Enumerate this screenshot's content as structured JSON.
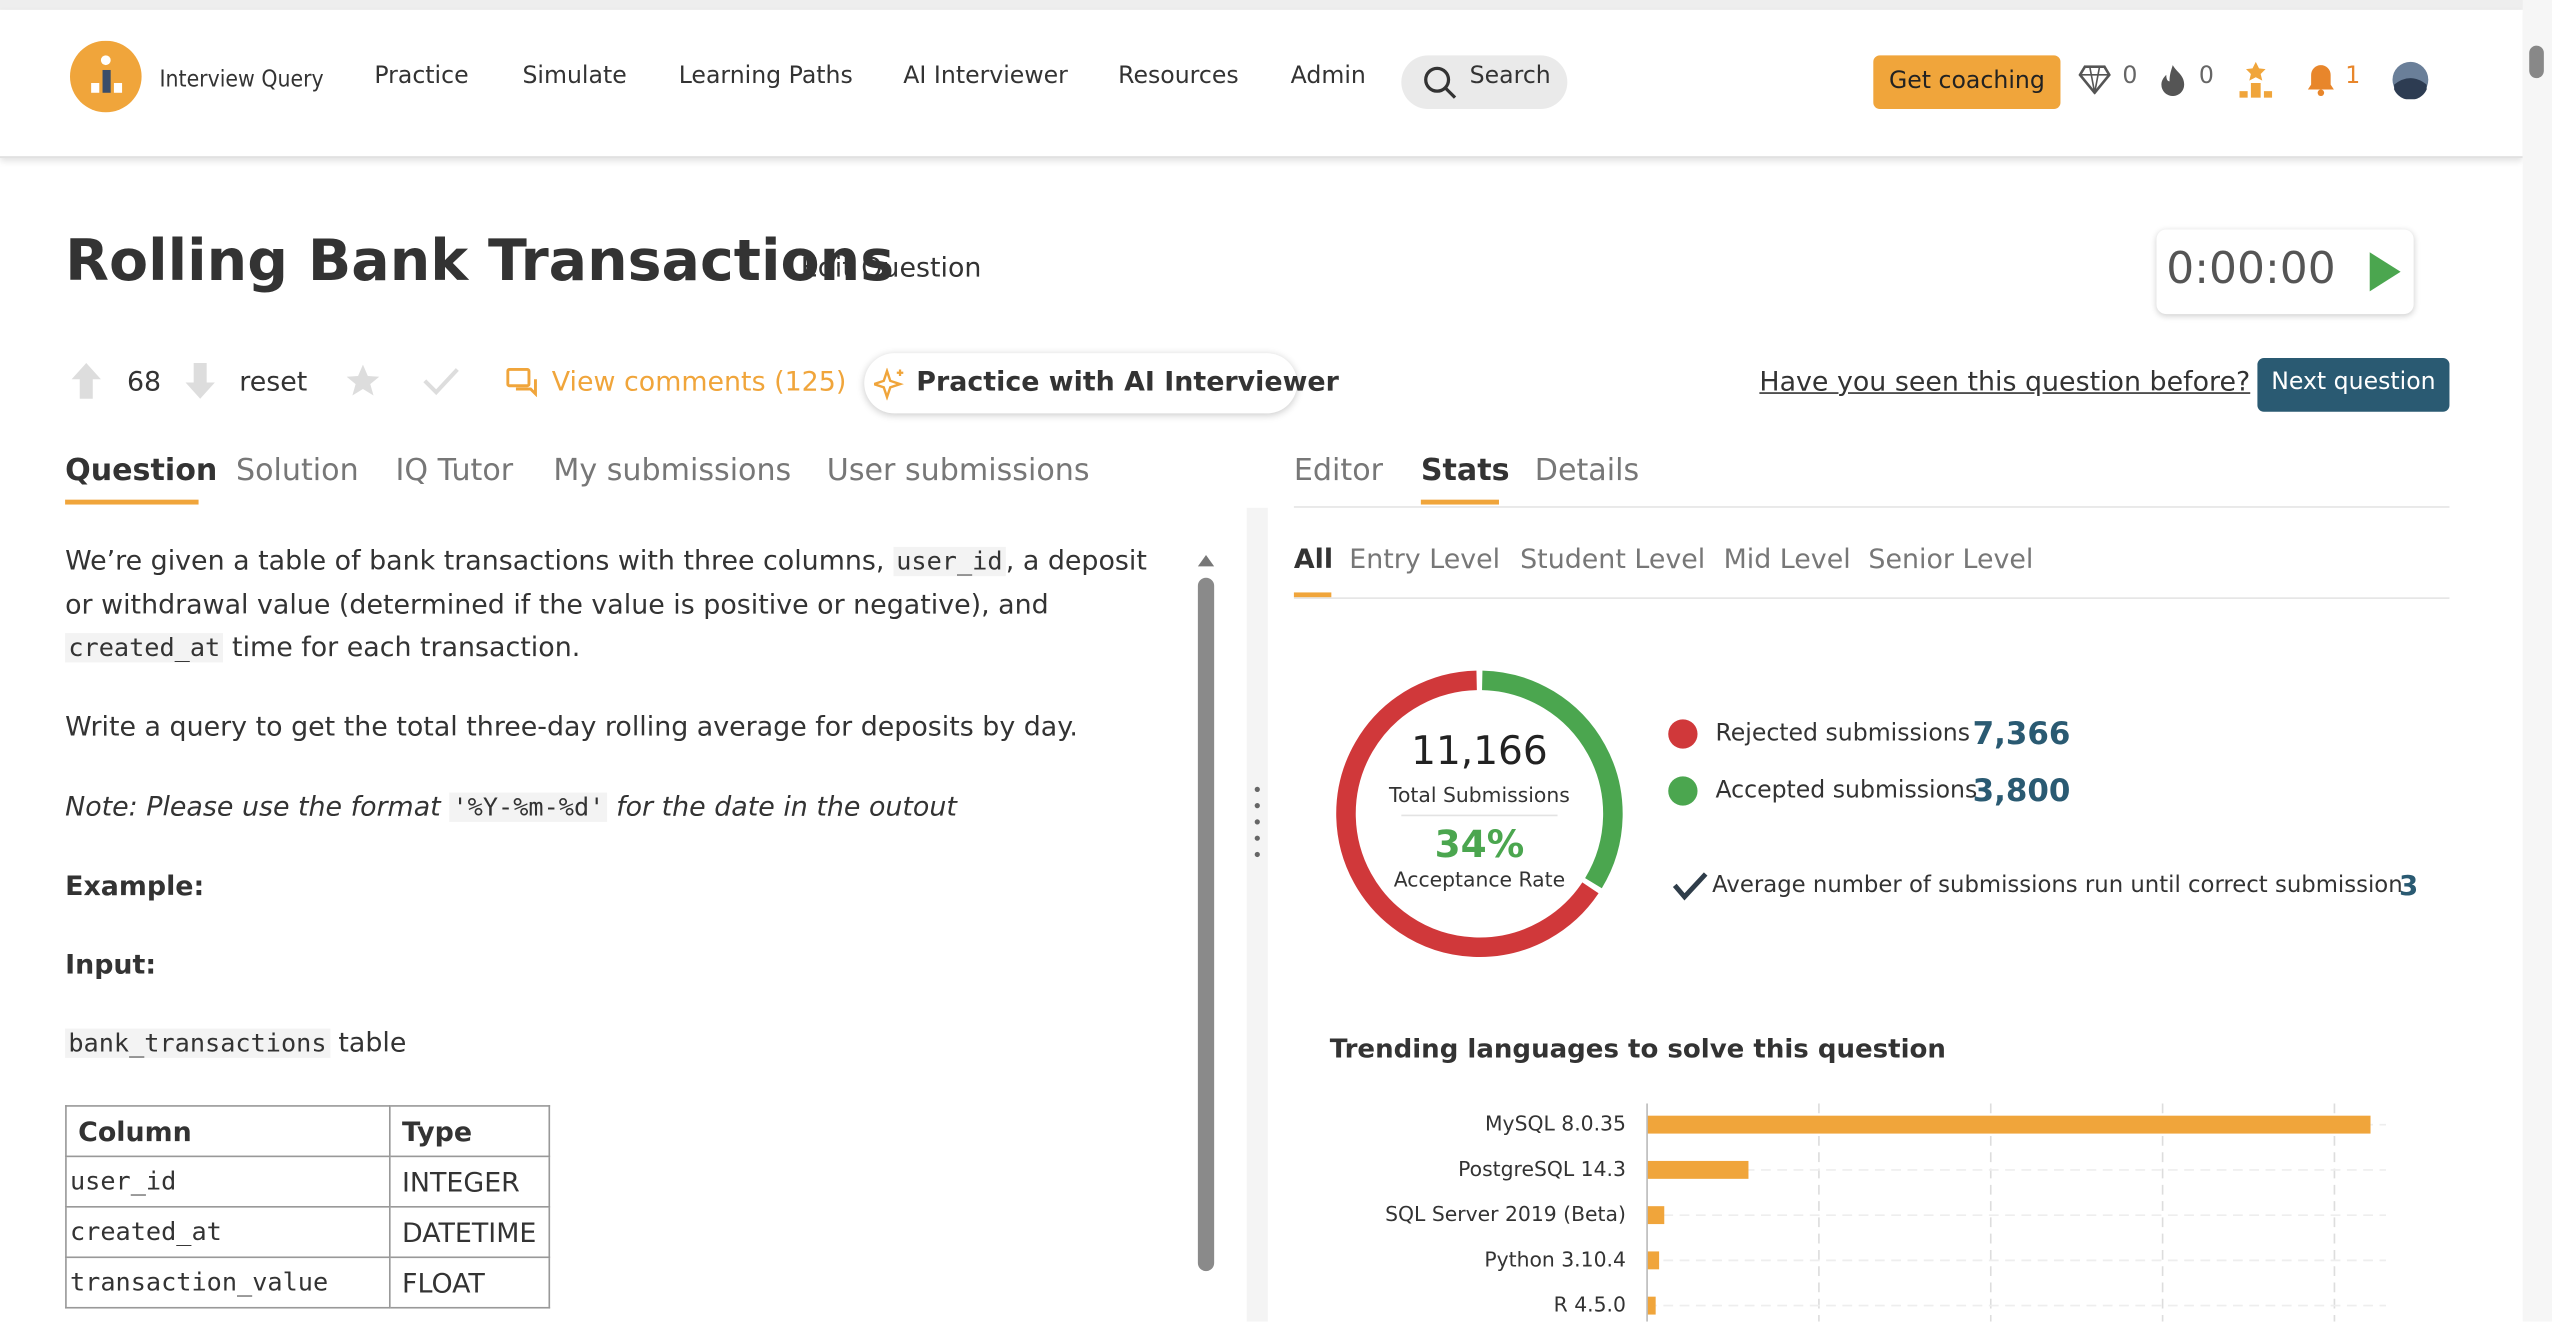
{
  "nav": {
    "brand": "Interview Query",
    "links": [
      "Practice",
      "Simulate",
      "Learning Paths",
      "AI Interviewer",
      "Resources",
      "Admin"
    ],
    "search": "Search",
    "coaching": "Get coaching",
    "gems": "0",
    "streak": "0",
    "notifications": "1"
  },
  "question": {
    "title": "Rolling Bank Transactions",
    "edit": "Edit Question",
    "timer": "0:00:00",
    "votes": "68",
    "reset": "reset",
    "comments": "View comments (125)",
    "ai": "Practice with AI Interviewer",
    "seen": "Have you seen this question before?",
    "next": "Next question",
    "tabs": [
      "Question",
      "Solution",
      "IQ Tutor",
      "My submissions",
      "User submissions"
    ],
    "p1": [
      "We’re given a table of bank transactions with three columns, ",
      "user_id",
      ", a deposit or withdrawal value (determined if the value is positive or negative), and ",
      "created_at",
      " time for each transaction."
    ],
    "p2": "Write a query to get the total three-day rolling average for deposits by day.",
    "p3": [
      "Note: Please use the format ",
      "'%Y-%m-%d'",
      " for the date in the outout"
    ],
    "example": "Example:",
    "input": "Input:",
    "table_name": [
      "bank_transactions",
      " table"
    ],
    "table": {
      "header": [
        "Column",
        "Type"
      ],
      "rows": [
        [
          "user_id",
          "INTEGER"
        ],
        [
          "created_at",
          "DATETIME"
        ],
        [
          "transaction_value",
          "FLOAT"
        ]
      ]
    }
  },
  "right_tabs": [
    "Editor",
    "Stats",
    "Details"
  ],
  "levels": [
    "All",
    "Entry Level",
    "Student Level",
    "Mid Level",
    "Senior Level"
  ],
  "chart_data": [
    {
      "type": "donut",
      "categories": [
        "Rejected submissions",
        "Accepted submissions"
      ],
      "values": [
        7366,
        3800
      ],
      "value_labels": [
        "7,366",
        "3,800"
      ],
      "colors": [
        "#d0383a",
        "#4ba64f"
      ],
      "total": {
        "value": 11166,
        "label": "11,166"
      },
      "total_caption": "Total Submissions",
      "rate": {
        "value": 34,
        "label": "34%"
      },
      "rate_caption": "Acceptance Rate",
      "average_caption": "Average number of submissions run until correct submission",
      "average": 3
    },
    {
      "type": "hbar",
      "title": "Trending languages to solve this question",
      "categories": [
        "MySQL 8.0.35",
        "PostgreSQL 14.3",
        "SQL Server 2019 (Beta)",
        "Python 3.10.4",
        "R 4.5.0"
      ],
      "values": [
        4.21,
        0.59,
        0.1,
        0.07,
        0.05
      ],
      "color": "#f0a53b",
      "xlim": [
        0,
        4.3
      ],
      "xticks": [
        1,
        2,
        3,
        4
      ],
      "grid": true
    }
  ]
}
